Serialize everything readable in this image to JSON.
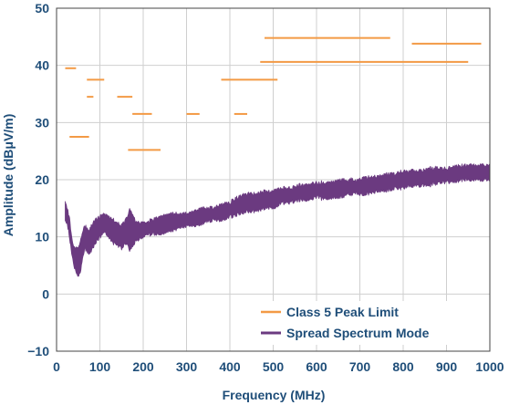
{
  "chart_data": {
    "type": "line",
    "xlabel": "Frequency (MHz)",
    "ylabel": "Amplitude (dBμV/m)",
    "xlim": [
      0,
      1000
    ],
    "ylim": [
      -10,
      50
    ],
    "x_ticks": [
      0,
      100,
      200,
      300,
      400,
      500,
      600,
      700,
      800,
      900,
      1000
    ],
    "y_ticks": [
      -10,
      0,
      10,
      20,
      30,
      40,
      50
    ],
    "grid": true,
    "legend_placement": "bottom-right",
    "colors": {
      "limit": "#f39a45",
      "spectrum": "#6b3a80",
      "axis_text": "#1f4e79",
      "grid": "#cfcfcf"
    },
    "series": [
      {
        "name": "Class 5 Peak Limit",
        "style": "horizontal-segments",
        "segments": [
          {
            "x": [
              20,
              45
            ],
            "y": 39.5
          },
          {
            "x": [
              70,
              110
            ],
            "y": 37.5
          },
          {
            "x": [
              70,
              85
            ],
            "y": 34.5
          },
          {
            "x": [
              140,
              175
            ],
            "y": 34.5
          },
          {
            "x": [
              30,
              75
            ],
            "y": 27.5
          },
          {
            "x": [
              175,
              220
            ],
            "y": 31.5
          },
          {
            "x": [
              300,
              330
            ],
            "y": 31.5
          },
          {
            "x": [
              410,
              440
            ],
            "y": 31.5
          },
          {
            "x": [
              165,
              240
            ],
            "y": 25.2
          },
          {
            "x": [
              380,
              510
            ],
            "y": 37.5
          },
          {
            "x": [
              480,
              770
            ],
            "y": 44.8
          },
          {
            "x": [
              470,
              950
            ],
            "y": 40.6
          },
          {
            "x": [
              820,
              980
            ],
            "y": 43.8
          }
        ]
      },
      {
        "name": "Spread Spectrum Mode",
        "style": "noisy-band",
        "x": [
          20,
          25,
          30,
          35,
          40,
          45,
          50,
          55,
          60,
          65,
          70,
          75,
          80,
          90,
          100,
          110,
          120,
          130,
          140,
          150,
          160,
          170,
          180,
          190,
          200,
          220,
          240,
          260,
          280,
          300,
          320,
          340,
          360,
          380,
          400,
          420,
          440,
          460,
          480,
          500,
          520,
          540,
          560,
          580,
          600,
          620,
          640,
          660,
          680,
          700,
          720,
          740,
          760,
          780,
          800,
          820,
          840,
          860,
          880,
          900,
          920,
          940,
          960,
          980,
          1000
        ],
        "lower": [
          13,
          12,
          10,
          7,
          5,
          4,
          3,
          4,
          6,
          8,
          7.5,
          7,
          7.5,
          9,
          10,
          11,
          10,
          9,
          8.5,
          8,
          9,
          7.5,
          9,
          9.5,
          10,
          10.5,
          10.5,
          11,
          11.5,
          12,
          12,
          12.5,
          13,
          13,
          13.5,
          14,
          14.5,
          14.5,
          15,
          15,
          16,
          16,
          16.5,
          16.5,
          17,
          16.5,
          17,
          17,
          17.5,
          17.5,
          17.5,
          18,
          18,
          18.5,
          18.5,
          19,
          19,
          19,
          19.5,
          19.5,
          19.5,
          20,
          20,
          20,
          20
        ],
        "upper": [
          16,
          15,
          13,
          10,
          8,
          8,
          8,
          9,
          11,
          12,
          11.5,
          11,
          12,
          13,
          13.5,
          14,
          13.5,
          13,
          12.5,
          12,
          13,
          15,
          13,
          12.5,
          12.5,
          13,
          13.5,
          14,
          14,
          14,
          14.5,
          15,
          15,
          15.5,
          16,
          17,
          17.5,
          17.5,
          18,
          18,
          18.5,
          18.5,
          19,
          19,
          19.5,
          19.5,
          19.5,
          20,
          20,
          20,
          20.5,
          20.5,
          21,
          21,
          21.5,
          21.5,
          21.5,
          22,
          22,
          22,
          22.5,
          22.5,
          22.5,
          22.5,
          22.5
        ]
      }
    ]
  }
}
